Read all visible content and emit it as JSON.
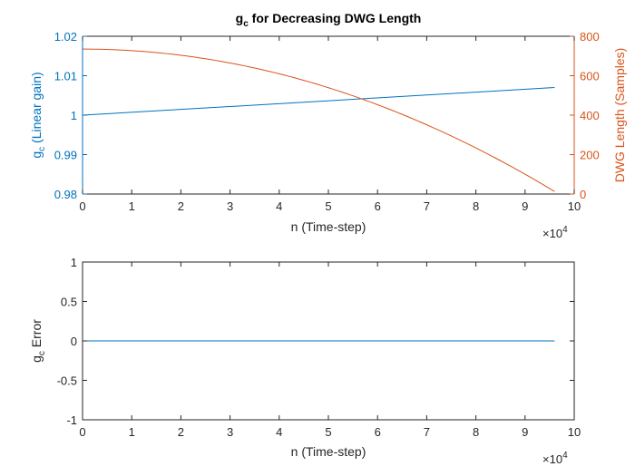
{
  "chart_data": [
    {
      "type": "line",
      "title_main": "g",
      "title_sub": "c",
      "title_rest": " for Decreasing DWG Length",
      "xlabel": "n (Time-step)",
      "xlim": [
        0,
        100000
      ],
      "x_tick_labels": [
        "0",
        "1",
        "2",
        "3",
        "4",
        "5",
        "6",
        "7",
        "8",
        "9",
        "10"
      ],
      "x_exponent_base": "×10",
      "x_exponent": "4",
      "ylabel_left_main": "g",
      "ylabel_left_sub": "c",
      "ylabel_left_rest": " (Linear gain)",
      "ylim_left": [
        0.98,
        1.02
      ],
      "y_left_ticks": [
        0.98,
        0.99,
        1.0,
        1.01,
        1.02
      ],
      "y_left_tick_labels": [
        "0.98",
        "0.99",
        "1",
        "1.01",
        "1.02"
      ],
      "ylabel_right": "DWG Length (Samples)",
      "ylim_right": [
        0,
        800
      ],
      "y_right_ticks": [
        0,
        200,
        400,
        600,
        800
      ],
      "y_right_tick_labels": [
        "0",
        "200",
        "400",
        "600",
        "800"
      ],
      "left_color": "#0072BD",
      "right_color": "#D95319",
      "series": [
        {
          "axis": "left",
          "color": "#0072BD",
          "x": [
            0,
            96000
          ],
          "y": [
            1.0,
            1.007
          ]
        },
        {
          "axis": "right",
          "color": "#D95319",
          "x": [
            0,
            10000,
            20000,
            30000,
            40000,
            50000,
            60000,
            70000,
            80000,
            90000,
            96000
          ],
          "y": [
            735,
            727,
            703,
            664,
            609,
            538,
            451,
            349,
            231,
            98,
            13
          ]
        }
      ],
      "grid": false
    },
    {
      "type": "line",
      "xlabel": "n (Time-step)",
      "xlim": [
        0,
        100000
      ],
      "x_tick_labels": [
        "0",
        "1",
        "2",
        "3",
        "4",
        "5",
        "6",
        "7",
        "8",
        "9",
        "10"
      ],
      "x_exponent_base": "×10",
      "x_exponent": "4",
      "ylabel_main": "g",
      "ylabel_sub": "c",
      "ylabel_rest": " Error",
      "ylim": [
        -1,
        1
      ],
      "y_ticks": [
        -1,
        -0.5,
        0,
        0.5,
        1
      ],
      "y_tick_labels": [
        "-1",
        "-0.5",
        "0",
        "0.5",
        "1"
      ],
      "series": [
        {
          "color": "#0072BD",
          "x": [
            0,
            96000
          ],
          "y": [
            0,
            0
          ]
        }
      ],
      "grid": false
    }
  ]
}
